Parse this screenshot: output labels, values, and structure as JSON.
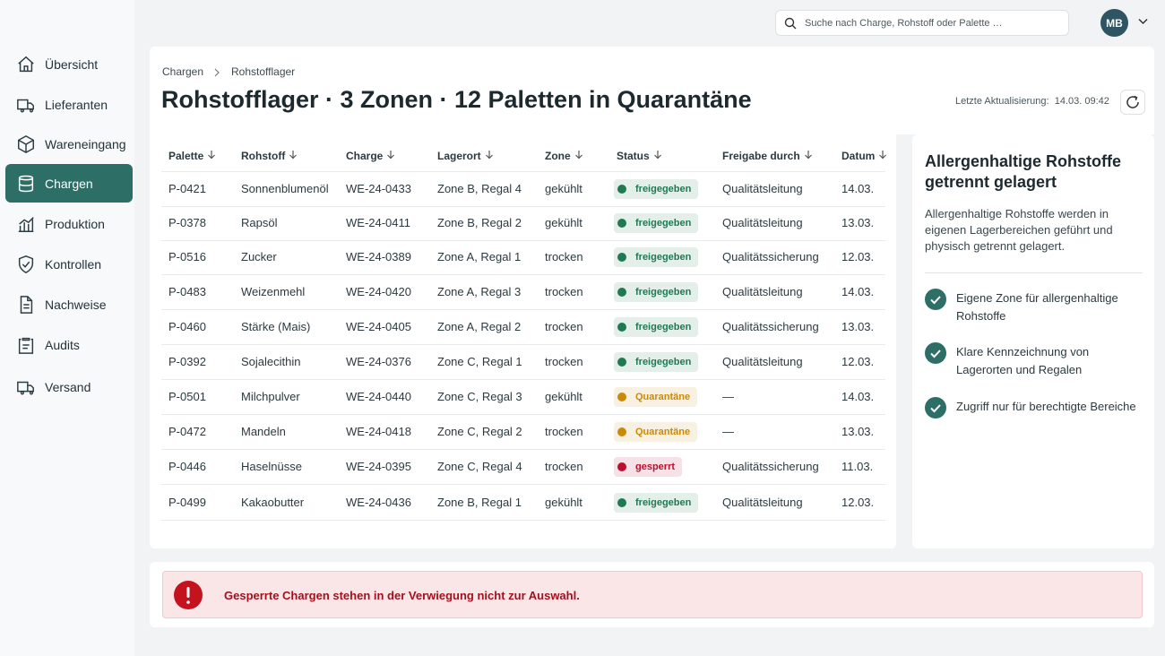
{
  "nav": [
    {
      "label": "Übersicht"
    },
    {
      "label": "Lieferanten"
    },
    {
      "label": "Wareneingang"
    },
    {
      "label": "Chargen",
      "active": true
    },
    {
      "label": "Produktion"
    },
    {
      "label": "Kontrollen"
    },
    {
      "label": "Nachweise"
    },
    {
      "label": "Audits"
    },
    {
      "label": "Versand"
    }
  ],
  "search_placeholder": "Suche nach Charge, Rohstoff oder Palette …",
  "user_initials": "MB",
  "breadcrumb": [
    "Chargen",
    "Rohstofflager"
  ],
  "page_title": "Rohstofflager · 3 Zonen · 12 Paletten in Quarantäne",
  "last_update": {
    "label": "Letzte Aktualisierung:",
    "value": "14.03. 09:42"
  },
  "table": {
    "columns": [
      "Palette",
      "Rohstoff",
      "Charge",
      "Lagerort",
      "Zone",
      "Status",
      "Freigabe durch",
      "Datum"
    ],
    "rows": [
      [
        "P-0421",
        "Sonnenblumenöl",
        "WE-24-0433",
        "Zone B, Regal 4",
        "gekühlt",
        "freigegeben",
        "Qualitätsleitung",
        "14.03."
      ],
      [
        "P-0378",
        "Rapsöl",
        "WE-24-0411",
        "Zone B, Regal 2",
        "gekühlt",
        "freigegeben",
        "Qualitätsleitung",
        "13.03."
      ],
      [
        "P-0516",
        "Zucker",
        "WE-24-0389",
        "Zone A, Regal 1",
        "trocken",
        "freigegeben",
        "Qualitätssicherung",
        "12.03."
      ],
      [
        "P-0483",
        "Weizenmehl",
        "WE-24-0420",
        "Zone A, Regal 3",
        "trocken",
        "freigegeben",
        "Qualitätsleitung",
        "14.03."
      ],
      [
        "P-0460",
        "Stärke (Mais)",
        "WE-24-0405",
        "Zone A, Regal 2",
        "trocken",
        "freigegeben",
        "Qualitätssicherung",
        "13.03."
      ],
      [
        "P-0392",
        "Sojalecithin",
        "WE-24-0376",
        "Zone C, Regal 1",
        "trocken",
        "freigegeben",
        "Qualitätsleitung",
        "12.03."
      ],
      [
        "P-0501",
        "Milchpulver",
        "WE-24-0440",
        "Zone C, Regal 3",
        "gekühlt",
        "Quarantäne",
        "—",
        "14.03."
      ],
      [
        "P-0472",
        "Mandeln",
        "WE-24-0418",
        "Zone C, Regal 2",
        "trocken",
        "Quarantäne",
        "—",
        "13.03."
      ],
      [
        "P-0446",
        "Haselnüsse",
        "WE-24-0395",
        "Zone C, Regal 4",
        "trocken",
        "gesperrt",
        "Qualitätssicherung",
        "11.03."
      ],
      [
        "P-0499",
        "Kakaobutter",
        "WE-24-0436",
        "Zone B, Regal 1",
        "gekühlt",
        "freigegeben",
        "Qualitätsleitung",
        "12.03."
      ]
    ],
    "status_colors": [
      "#1f7a52",
      "#1f7a52",
      "#1f7a52",
      "#1f7a52",
      "#1f7a52",
      "#1f7a52",
      "#c98a0c",
      "#c98a0c",
      "#b8102e",
      "#1f7a52"
    ]
  },
  "aside": {
    "title": "Allergenhaltige Rohstoffe getrennt gelagert",
    "text": "Allergenhaltige Rohstoffe werden in eigenen Lagerbereichen geführt und physisch getrennt gelagert.",
    "checks": [
      "Eigene Zone für allergenhaltige Rohstoffe",
      "Klare Kennzeichnung von Lagerorten und Regalen",
      "Zugriff nur für berechtigte Bereiche"
    ]
  },
  "alert": "Gesperrte Chargen stehen in der Verwiegung nicht zur Auswahl."
}
